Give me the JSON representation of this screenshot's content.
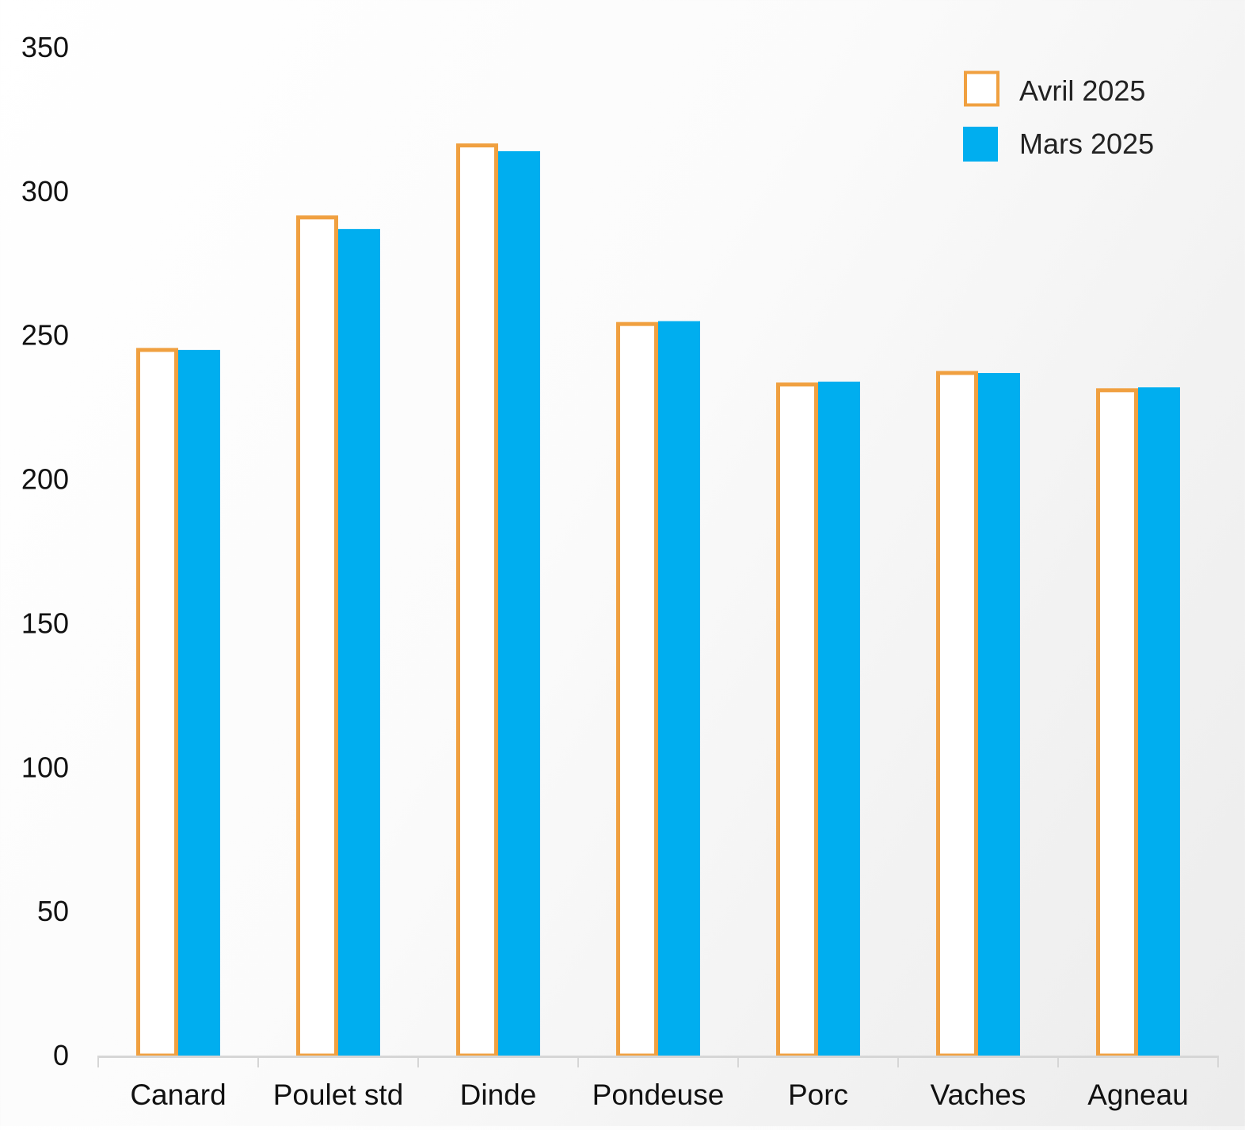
{
  "chart_data": {
    "type": "bar",
    "categories": [
      "Canard",
      "Poulet std",
      "Dinde",
      "Pondeuse",
      "Porc",
      "Vaches",
      "Agneau"
    ],
    "series": [
      {
        "name": "Avril 2025",
        "values": [
          245,
          291,
          316,
          254,
          233,
          237,
          231
        ],
        "color": "#F0A040",
        "style": "outline"
      },
      {
        "name": "Mars 2025",
        "values": [
          245,
          287,
          314,
          255,
          234,
          237,
          232
        ],
        "color": "#00AEEF",
        "style": "filled"
      }
    ],
    "yticks": [
      "0",
      "50",
      "100",
      "150",
      "200",
      "250",
      "300",
      "350"
    ],
    "ylim": [
      0,
      350
    ],
    "grid": false,
    "legend": "top-right"
  }
}
